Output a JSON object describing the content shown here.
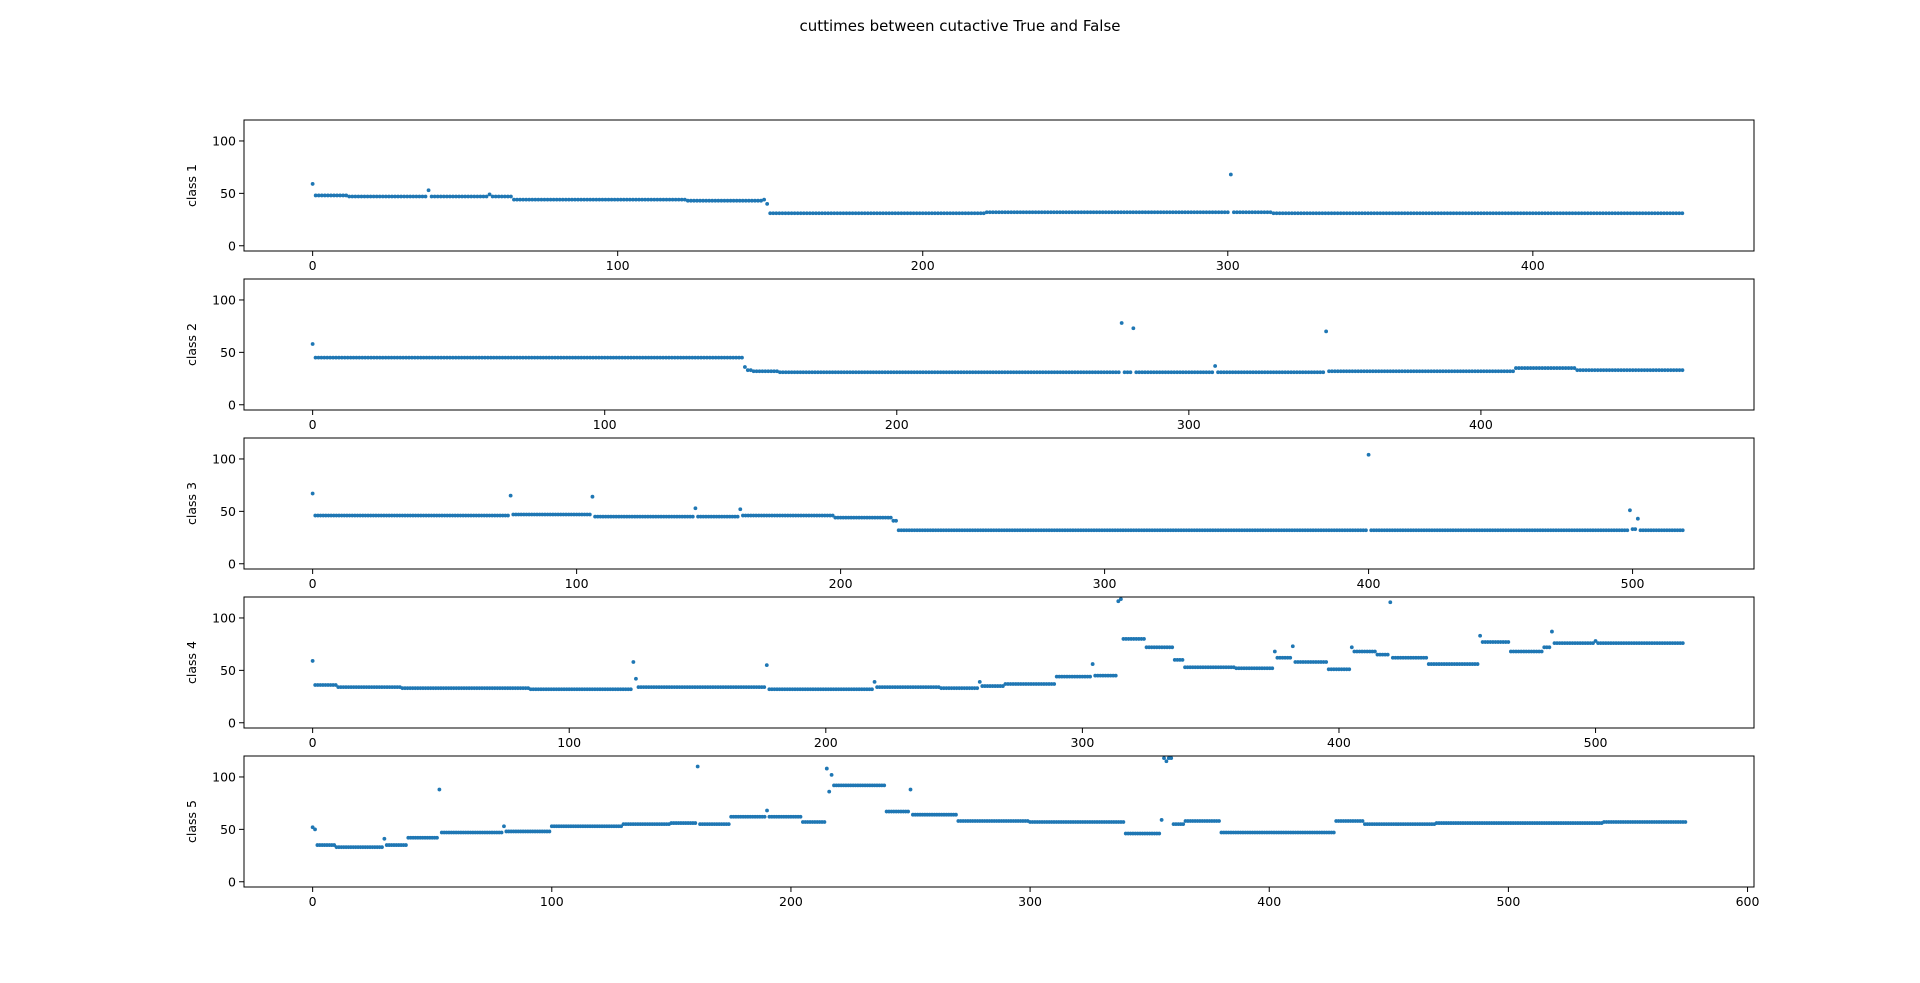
{
  "figure": {
    "suptitle": "cuttimes between cutactive True and False",
    "marker_color": "#1f77b4"
  },
  "chart_data": [
    {
      "type": "scatter",
      "title": "",
      "xlabel": "",
      "ylabel": "class 1",
      "xlim": [
        -22.5,
        472.5
      ],
      "ylim": [
        -5,
        120
      ],
      "xticks": [
        0,
        100,
        200,
        300,
        400
      ],
      "yticks": [
        0,
        50,
        100
      ],
      "grid": false,
      "n_points": 450,
      "segments": [
        [
          0,
          0,
          59
        ],
        [
          1,
          11,
          48
        ],
        [
          12,
          37,
          47
        ],
        [
          38,
          38,
          53
        ],
        [
          39,
          57,
          47
        ],
        [
          58,
          58,
          49
        ],
        [
          59,
          65,
          47
        ],
        [
          66,
          122,
          44
        ],
        [
          123,
          147,
          43
        ],
        [
          148,
          148,
          44
        ],
        [
          149,
          149,
          40
        ],
        [
          150,
          220,
          31
        ],
        [
          221,
          300,
          32
        ],
        [
          301,
          301,
          68
        ],
        [
          302,
          314,
          32
        ],
        [
          315,
          449,
          31
        ]
      ]
    },
    {
      "type": "scatter",
      "title": "",
      "xlabel": "",
      "ylabel": "class 2",
      "xlim": [
        -23.5,
        493.5
      ],
      "ylim": [
        -5,
        120
      ],
      "xticks": [
        0,
        100,
        200,
        300,
        400
      ],
      "yticks": [
        0,
        50,
        100
      ],
      "grid": false,
      "n_points": 470,
      "segments": [
        [
          0,
          0,
          58
        ],
        [
          1,
          147,
          45
        ],
        [
          148,
          148,
          36
        ],
        [
          149,
          150,
          33
        ],
        [
          151,
          159,
          32
        ],
        [
          160,
          276,
          31
        ],
        [
          277,
          277,
          78
        ],
        [
          278,
          280,
          31
        ],
        [
          281,
          281,
          73
        ],
        [
          282,
          308,
          31
        ],
        [
          309,
          309,
          37
        ],
        [
          310,
          346,
          31
        ],
        [
          347,
          347,
          70
        ],
        [
          348,
          411,
          32
        ],
        [
          412,
          432,
          35
        ],
        [
          433,
          469,
          33
        ]
      ]
    },
    {
      "type": "scatter",
      "title": "",
      "xlabel": "",
      "ylabel": "class 3",
      "xlim": [
        -26,
        546
      ],
      "ylim": [
        -5,
        120
      ],
      "xticks": [
        0,
        100,
        200,
        300,
        400,
        500
      ],
      "yticks": [
        0,
        50,
        100
      ],
      "grid": false,
      "n_points": 520,
      "segments": [
        [
          0,
          0,
          67
        ],
        [
          1,
          74,
          46
        ],
        [
          75,
          75,
          65
        ],
        [
          76,
          105,
          47
        ],
        [
          106,
          106,
          64
        ],
        [
          107,
          144,
          45
        ],
        [
          145,
          145,
          53
        ],
        [
          146,
          161,
          45
        ],
        [
          162,
          162,
          52
        ],
        [
          163,
          197,
          46
        ],
        [
          198,
          219,
          44
        ],
        [
          220,
          221,
          41
        ],
        [
          222,
          399,
          32
        ],
        [
          400,
          400,
          104
        ],
        [
          401,
          498,
          32
        ],
        [
          499,
          499,
          51
        ],
        [
          500,
          501,
          33
        ],
        [
          502,
          502,
          43
        ],
        [
          503,
          519,
          32
        ]
      ]
    },
    {
      "type": "scatter",
      "title": "",
      "xlabel": "",
      "ylabel": "class 4",
      "xlim": [
        -26.75,
        561.75
      ],
      "ylim": [
        -5,
        120
      ],
      "xticks": [
        0,
        100,
        200,
        300,
        400,
        500
      ],
      "yticks": [
        0,
        50,
        100
      ],
      "grid": false,
      "n_points": 535,
      "segments": [
        [
          0,
          0,
          59
        ],
        [
          1,
          9,
          36
        ],
        [
          10,
          34,
          34
        ],
        [
          35,
          84,
          33
        ],
        [
          85,
          124,
          32
        ],
        [
          125,
          125,
          58
        ],
        [
          126,
          126,
          42
        ],
        [
          127,
          176,
          34
        ],
        [
          177,
          177,
          55
        ],
        [
          178,
          218,
          32
        ],
        [
          219,
          219,
          39
        ],
        [
          220,
          244,
          34
        ],
        [
          245,
          259,
          33
        ],
        [
          260,
          260,
          39
        ],
        [
          261,
          269,
          35
        ],
        [
          270,
          289,
          37
        ],
        [
          290,
          303,
          44
        ],
        [
          304,
          304,
          56
        ],
        [
          305,
          313,
          45
        ],
        [
          314,
          314,
          116
        ],
        [
          315,
          315,
          118
        ],
        [
          316,
          324,
          80
        ],
        [
          325,
          335,
          72
        ],
        [
          336,
          339,
          60
        ],
        [
          340,
          359,
          53
        ],
        [
          360,
          374,
          52
        ],
        [
          375,
          375,
          68
        ],
        [
          376,
          381,
          62
        ],
        [
          382,
          382,
          73
        ],
        [
          383,
          395,
          58
        ],
        [
          396,
          404,
          51
        ],
        [
          405,
          405,
          72
        ],
        [
          406,
          414,
          68
        ],
        [
          415,
          419,
          65
        ],
        [
          420,
          420,
          115
        ],
        [
          421,
          434,
          62
        ],
        [
          435,
          454,
          56
        ],
        [
          455,
          455,
          83
        ],
        [
          456,
          466,
          77
        ],
        [
          467,
          479,
          68
        ],
        [
          480,
          482,
          72
        ],
        [
          483,
          483,
          87
        ],
        [
          484,
          499,
          76
        ],
        [
          500,
          500,
          78
        ],
        [
          501,
          534,
          76
        ]
      ]
    },
    {
      "type": "scatter",
      "title": "",
      "xlabel": "",
      "ylabel": "class 5",
      "xlim": [
        -28.7,
        602.7
      ],
      "ylim": [
        -5,
        120
      ],
      "xticks": [
        0,
        100,
        200,
        300,
        400,
        500,
        600
      ],
      "yticks": [
        0,
        50,
        100
      ],
      "grid": false,
      "n_points": 575,
      "segments": [
        [
          0,
          0,
          52
        ],
        [
          1,
          1,
          50
        ],
        [
          2,
          9,
          35
        ],
        [
          10,
          29,
          33
        ],
        [
          30,
          30,
          41
        ],
        [
          31,
          39,
          35
        ],
        [
          40,
          52,
          42
        ],
        [
          53,
          53,
          88
        ],
        [
          54,
          79,
          47
        ],
        [
          80,
          80,
          53
        ],
        [
          81,
          99,
          48
        ],
        [
          100,
          129,
          53
        ],
        [
          130,
          149,
          55
        ],
        [
          150,
          160,
          56
        ],
        [
          161,
          161,
          110
        ],
        [
          162,
          174,
          55
        ],
        [
          175,
          189,
          62
        ],
        [
          190,
          190,
          68
        ],
        [
          191,
          204,
          62
        ],
        [
          205,
          214,
          57
        ],
        [
          215,
          215,
          108
        ],
        [
          216,
          216,
          86
        ],
        [
          217,
          217,
          102
        ],
        [
          218,
          239,
          92
        ],
        [
          240,
          249,
          67
        ],
        [
          250,
          250,
          88
        ],
        [
          251,
          269,
          64
        ],
        [
          270,
          299,
          58
        ],
        [
          300,
          339,
          57
        ],
        [
          340,
          354,
          46
        ],
        [
          355,
          355,
          59
        ],
        [
          356,
          356,
          118
        ],
        [
          357,
          357,
          115
        ],
        [
          358,
          359,
          118
        ],
        [
          360,
          364,
          55
        ],
        [
          365,
          379,
          58
        ],
        [
          380,
          427,
          47
        ],
        [
          428,
          439,
          58
        ],
        [
          440,
          469,
          55
        ],
        [
          470,
          539,
          56
        ],
        [
          540,
          574,
          57
        ]
      ]
    }
  ]
}
